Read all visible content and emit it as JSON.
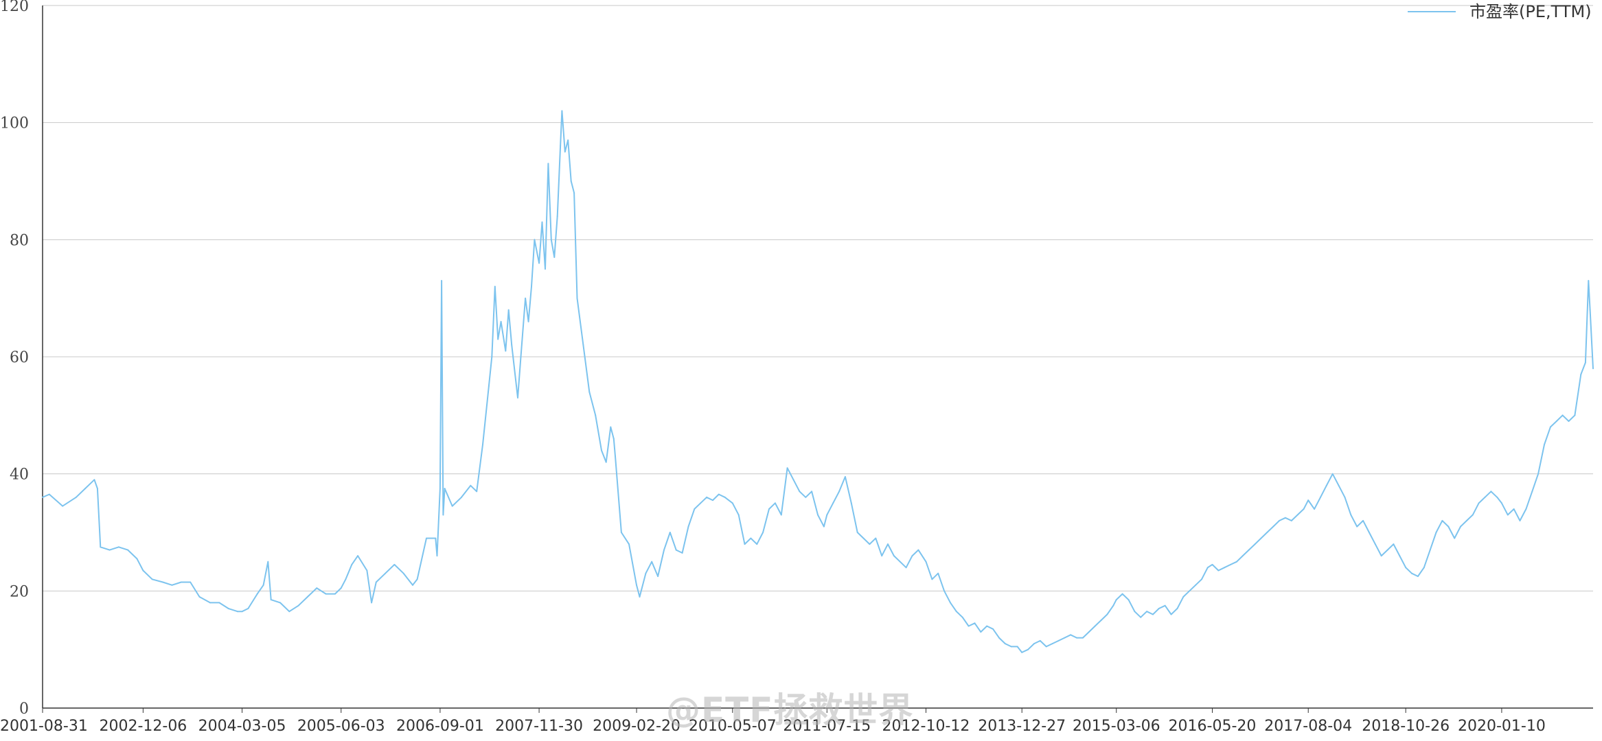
{
  "legend": {
    "label": "市盈率(PE,TTM)",
    "position": "top-right"
  },
  "watermark": {
    "text": "@ETF拯救世界"
  },
  "colors": {
    "line": "#7cc3ee",
    "grid": "#c8c8c8",
    "axis": "#333333"
  },
  "chart_data": {
    "type": "line",
    "title": "",
    "xlabel": "",
    "ylabel": "",
    "ylim": [
      0,
      120
    ],
    "yticks": [
      0,
      20,
      40,
      60,
      80,
      100,
      120
    ],
    "grid": "horizontal",
    "x_tick_labels": [
      "2001-08-31",
      "2002-12-06",
      "2004-03-05",
      "2005-06-03",
      "2006-09-01",
      "2007-11-30",
      "2009-02-20",
      "2010-05-07",
      "2011-07-15",
      "2012-10-12",
      "2013-12-27",
      "2015-03-06",
      "2016-05-20",
      "2017-08-04",
      "2018-10-26",
      "2020-01-10"
    ],
    "series": [
      {
        "name": "市盈率(PE,TTM)",
        "points": [
          [
            "2001-08-31",
            36
          ],
          [
            "2001-10-01",
            36.5
          ],
          [
            "2001-12-01",
            34.5
          ],
          [
            "2002-02-01",
            36
          ],
          [
            "2002-03-15",
            37.5
          ],
          [
            "2002-04-26",
            39
          ],
          [
            "2002-05-10",
            37.5
          ],
          [
            "2002-05-24",
            27.5
          ],
          [
            "2002-07-05",
            27
          ],
          [
            "2002-08-16",
            27.5
          ],
          [
            "2002-09-27",
            27
          ],
          [
            "2002-11-08",
            25.5
          ],
          [
            "2002-12-06",
            23.5
          ],
          [
            "2003-01-17",
            22
          ],
          [
            "2003-03-07",
            21.5
          ],
          [
            "2003-04-18",
            21
          ],
          [
            "2003-05-30",
            21.5
          ],
          [
            "2003-07-11",
            21.5
          ],
          [
            "2003-08-22",
            19
          ],
          [
            "2003-10-10",
            18
          ],
          [
            "2003-11-21",
            18
          ],
          [
            "2004-01-02",
            17
          ],
          [
            "2004-02-13",
            16.5
          ],
          [
            "2004-03-05",
            16.5
          ],
          [
            "2004-04-02",
            17
          ],
          [
            "2004-05-14",
            19.5
          ],
          [
            "2004-06-11",
            21
          ],
          [
            "2004-07-02",
            25
          ],
          [
            "2004-07-16",
            18.5
          ],
          [
            "2004-08-27",
            18
          ],
          [
            "2004-10-08",
            16.5
          ],
          [
            "2004-11-19",
            17.5
          ],
          [
            "2004-12-31",
            19
          ],
          [
            "2005-02-11",
            20.5
          ],
          [
            "2005-03-25",
            19.5
          ],
          [
            "2005-05-06",
            19.5
          ],
          [
            "2005-06-03",
            20.5
          ],
          [
            "2005-06-24",
            22
          ],
          [
            "2005-07-22",
            24.5
          ],
          [
            "2005-08-19",
            26
          ],
          [
            "2005-09-30",
            23.5
          ],
          [
            "2005-10-21",
            18
          ],
          [
            "2005-11-11",
            21.5
          ],
          [
            "2005-12-23",
            23
          ],
          [
            "2006-02-03",
            24.5
          ],
          [
            "2006-03-17",
            23
          ],
          [
            "2006-04-28",
            21
          ],
          [
            "2006-05-19",
            22
          ],
          [
            "2006-06-30",
            29
          ],
          [
            "2006-08-11",
            29
          ],
          [
            "2006-08-18",
            26
          ],
          [
            "2006-09-01",
            37.5
          ],
          [
            "2006-09-08",
            73
          ],
          [
            "2006-09-15",
            33
          ],
          [
            "2006-09-22",
            37.5
          ],
          [
            "2006-10-27",
            34.5
          ],
          [
            "2006-12-08",
            36
          ],
          [
            "2007-01-19",
            38
          ],
          [
            "2007-02-16",
            37
          ],
          [
            "2007-03-16",
            45
          ],
          [
            "2007-04-13",
            55
          ],
          [
            "2007-04-27",
            60
          ],
          [
            "2007-05-11",
            72
          ],
          [
            "2007-05-25",
            63
          ],
          [
            "2007-06-08",
            66
          ],
          [
            "2007-06-29",
            61
          ],
          [
            "2007-07-13",
            68
          ],
          [
            "2007-07-27",
            62
          ],
          [
            "2007-08-24",
            53
          ],
          [
            "2007-09-07",
            60
          ],
          [
            "2007-09-28",
            70
          ],
          [
            "2007-10-12",
            66
          ],
          [
            "2007-10-26",
            72
          ],
          [
            "2007-11-09",
            80
          ],
          [
            "2007-11-30",
            76
          ],
          [
            "2007-12-14",
            83
          ],
          [
            "2007-12-28",
            75
          ],
          [
            "2008-01-11",
            93
          ],
          [
            "2008-01-25",
            80
          ],
          [
            "2008-02-08",
            77
          ],
          [
            "2008-02-22",
            84
          ],
          [
            "2008-03-07",
            96
          ],
          [
            "2008-03-14",
            102
          ],
          [
            "2008-03-28",
            95
          ],
          [
            "2008-04-11",
            97
          ],
          [
            "2008-04-25",
            90
          ],
          [
            "2008-05-09",
            88
          ],
          [
            "2008-05-23",
            70
          ],
          [
            "2008-06-20",
            62
          ],
          [
            "2008-07-18",
            54
          ],
          [
            "2008-08-15",
            50
          ],
          [
            "2008-09-12",
            44
          ],
          [
            "2008-10-03",
            42
          ],
          [
            "2008-10-24",
            48
          ],
          [
            "2008-11-07",
            46
          ],
          [
            "2008-11-14",
            43
          ],
          [
            "2008-12-12",
            30
          ],
          [
            "2009-01-16",
            28
          ],
          [
            "2009-02-20",
            21
          ],
          [
            "2009-03-06",
            19
          ],
          [
            "2009-04-03",
            23
          ],
          [
            "2009-05-01",
            25
          ],
          [
            "2009-05-29",
            22.5
          ],
          [
            "2009-06-26",
            27
          ],
          [
            "2009-07-24",
            30
          ],
          [
            "2009-08-21",
            27
          ],
          [
            "2009-09-18",
            26.5
          ],
          [
            "2009-10-16",
            31
          ],
          [
            "2009-11-13",
            34
          ],
          [
            "2009-12-11",
            35
          ],
          [
            "2010-01-08",
            36
          ],
          [
            "2010-02-05",
            35.5
          ],
          [
            "2010-03-05",
            36.5
          ],
          [
            "2010-04-02",
            36
          ],
          [
            "2010-05-07",
            35
          ],
          [
            "2010-06-04",
            33
          ],
          [
            "2010-07-02",
            28
          ],
          [
            "2010-07-30",
            29
          ],
          [
            "2010-08-27",
            28
          ],
          [
            "2010-09-24",
            30
          ],
          [
            "2010-10-22",
            34
          ],
          [
            "2010-11-19",
            35
          ],
          [
            "2010-12-17",
            33
          ],
          [
            "2011-01-14",
            41
          ],
          [
            "2011-02-11",
            39
          ],
          [
            "2011-03-11",
            37
          ],
          [
            "2011-04-08",
            36
          ],
          [
            "2011-05-06",
            37
          ],
          [
            "2011-06-03",
            33
          ],
          [
            "2011-07-01",
            31
          ],
          [
            "2011-07-15",
            33
          ],
          [
            "2011-08-12",
            35
          ],
          [
            "2011-09-09",
            37
          ],
          [
            "2011-10-07",
            39.5
          ],
          [
            "2011-11-04",
            35
          ],
          [
            "2011-12-02",
            30
          ],
          [
            "2011-12-30",
            29
          ],
          [
            "2012-01-27",
            28
          ],
          [
            "2012-02-24",
            29
          ],
          [
            "2012-03-23",
            26
          ],
          [
            "2012-04-20",
            28
          ],
          [
            "2012-05-18",
            26
          ],
          [
            "2012-06-15",
            25
          ],
          [
            "2012-07-13",
            24
          ],
          [
            "2012-08-10",
            26
          ],
          [
            "2012-09-07",
            27
          ],
          [
            "2012-10-12",
            25
          ],
          [
            "2012-11-09",
            22
          ],
          [
            "2012-12-07",
            23
          ],
          [
            "2013-01-04",
            20
          ],
          [
            "2013-02-01",
            18
          ],
          [
            "2013-03-01",
            16.5
          ],
          [
            "2013-03-29",
            15.5
          ],
          [
            "2013-04-26",
            14
          ],
          [
            "2013-05-24",
            14.5
          ],
          [
            "2013-06-21",
            13
          ],
          [
            "2013-07-19",
            14
          ],
          [
            "2013-08-16",
            13.5
          ],
          [
            "2013-09-13",
            12
          ],
          [
            "2013-10-11",
            11
          ],
          [
            "2013-11-08",
            10.5
          ],
          [
            "2013-12-06",
            10.5
          ],
          [
            "2013-12-27",
            9.5
          ],
          [
            "2014-01-24",
            10
          ],
          [
            "2014-02-21",
            11
          ],
          [
            "2014-03-21",
            11.5
          ],
          [
            "2014-04-18",
            10.5
          ],
          [
            "2014-05-16",
            11
          ],
          [
            "2014-06-13",
            11.5
          ],
          [
            "2014-07-11",
            12
          ],
          [
            "2014-08-08",
            12.5
          ],
          [
            "2014-09-05",
            12
          ],
          [
            "2014-10-03",
            12
          ],
          [
            "2014-10-31",
            13
          ],
          [
            "2014-11-28",
            14
          ],
          [
            "2014-12-26",
            15
          ],
          [
            "2015-01-23",
            16
          ],
          [
            "2015-02-20",
            17.5
          ],
          [
            "2015-03-06",
            18.5
          ],
          [
            "2015-04-03",
            19.5
          ],
          [
            "2015-05-01",
            18.5
          ],
          [
            "2015-05-29",
            16.5
          ],
          [
            "2015-06-26",
            15.5
          ],
          [
            "2015-07-24",
            16.5
          ],
          [
            "2015-08-21",
            16
          ],
          [
            "2015-09-18",
            17
          ],
          [
            "2015-10-16",
            17.5
          ],
          [
            "2015-11-13",
            16
          ],
          [
            "2015-12-11",
            17
          ],
          [
            "2016-01-08",
            19
          ],
          [
            "2016-02-05",
            20
          ],
          [
            "2016-03-04",
            21
          ],
          [
            "2016-04-01",
            22
          ],
          [
            "2016-04-29",
            24
          ],
          [
            "2016-05-20",
            24.5
          ],
          [
            "2016-06-17",
            23.5
          ],
          [
            "2016-07-15",
            24
          ],
          [
            "2016-08-12",
            24.5
          ],
          [
            "2016-09-09",
            25
          ],
          [
            "2016-10-07",
            26
          ],
          [
            "2016-11-04",
            27
          ],
          [
            "2016-12-02",
            28
          ],
          [
            "2016-12-30",
            29
          ],
          [
            "2017-01-27",
            30
          ],
          [
            "2017-02-24",
            31
          ],
          [
            "2017-03-24",
            32
          ],
          [
            "2017-04-21",
            32.5
          ],
          [
            "2017-05-19",
            32
          ],
          [
            "2017-06-16",
            33
          ],
          [
            "2017-07-14",
            34
          ],
          [
            "2017-08-04",
            35.5
          ],
          [
            "2017-09-01",
            34
          ],
          [
            "2017-09-29",
            36
          ],
          [
            "2017-10-27",
            38
          ],
          [
            "2017-11-24",
            40
          ],
          [
            "2017-12-22",
            38
          ],
          [
            "2018-01-19",
            36
          ],
          [
            "2018-02-16",
            33
          ],
          [
            "2018-03-16",
            31
          ],
          [
            "2018-04-13",
            32
          ],
          [
            "2018-05-11",
            30
          ],
          [
            "2018-06-08",
            28
          ],
          [
            "2018-07-06",
            26
          ],
          [
            "2018-08-03",
            27
          ],
          [
            "2018-08-31",
            28
          ],
          [
            "2018-09-28",
            26
          ],
          [
            "2018-10-26",
            24
          ],
          [
            "2018-11-23",
            23
          ],
          [
            "2018-12-21",
            22.5
          ],
          [
            "2019-01-18",
            24
          ],
          [
            "2019-02-15",
            27
          ],
          [
            "2019-03-15",
            30
          ],
          [
            "2019-04-12",
            32
          ],
          [
            "2019-05-10",
            31
          ],
          [
            "2019-06-07",
            29
          ],
          [
            "2019-07-05",
            31
          ],
          [
            "2019-08-02",
            32
          ],
          [
            "2019-08-30",
            33
          ],
          [
            "2019-09-27",
            35
          ],
          [
            "2019-10-25",
            36
          ],
          [
            "2019-11-22",
            37
          ],
          [
            "2019-12-20",
            36
          ],
          [
            "2020-01-10",
            35
          ],
          [
            "2020-02-07",
            33
          ],
          [
            "2020-03-06",
            34
          ],
          [
            "2020-04-03",
            32
          ],
          [
            "2020-05-01",
            34
          ],
          [
            "2020-05-29",
            37
          ],
          [
            "2020-06-26",
            40
          ],
          [
            "2020-07-24",
            45
          ],
          [
            "2020-08-21",
            48
          ],
          [
            "2020-09-18",
            49
          ],
          [
            "2020-10-16",
            50
          ],
          [
            "2020-11-13",
            49
          ],
          [
            "2020-12-11",
            50
          ],
          [
            "2021-01-08",
            57
          ],
          [
            "2021-01-29",
            59
          ],
          [
            "2021-02-12",
            73
          ],
          [
            "2021-02-19",
            68
          ],
          [
            "2021-03-05",
            58
          ]
        ]
      }
    ]
  }
}
